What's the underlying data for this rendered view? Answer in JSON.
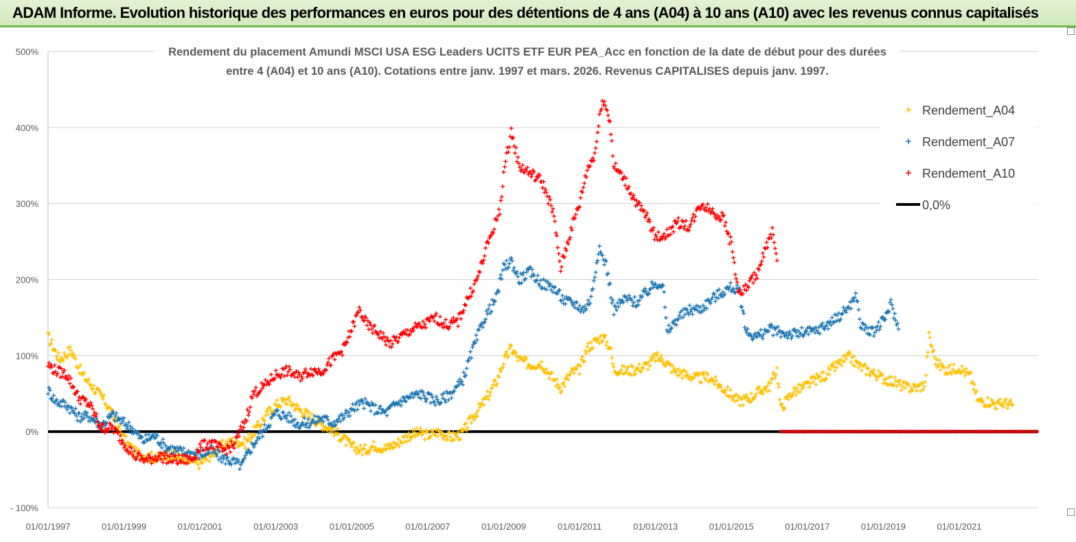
{
  "header": {
    "title": "ADAM Informe. Evolution historique des performances en euros pour des détentions de 4 ans (A04) à 10 ans (A10) avec les revenus connus capitalisés"
  },
  "chart_data": {
    "type": "scatter",
    "title_line1": "Rendement du placement Amundi MSCI USA ESG Leaders UCITS ETF EUR PEA_Acc en fonction de la date de début pour des durées",
    "title_line2": "entre 4 (A04) et 10 ans (A10). Cotations entre janv. 1997 et mars. 2026. Revenus CAPITALISES depuis janv. 1997.",
    "xlabel": "",
    "ylabel": "",
    "x_start": "01/01/1997",
    "x_end": "01/02/2023",
    "xlim_years": [
      1997,
      2023.08
    ],
    "ylim": [
      -100,
      500
    ],
    "y_ticks": [
      "- 100%",
      "0%",
      "100%",
      "200%",
      "300%",
      "400%",
      "500%"
    ],
    "y_tick_values": [
      -100,
      0,
      100,
      200,
      300,
      400,
      500
    ],
    "x_ticks": [
      "01/01/1997",
      "01/01/1999",
      "01/01/2001",
      "01/01/2003",
      "01/01/2005",
      "01/01/2007",
      "01/01/2009",
      "01/01/2011",
      "01/01/2013",
      "01/01/2015",
      "01/01/2017",
      "01/01/2019",
      "01/01/2021"
    ],
    "x_tick_values": [
      1997,
      1999,
      2001,
      2003,
      2005,
      2007,
      2009,
      2011,
      2013,
      2015,
      2017,
      2019,
      2021
    ],
    "grid": "horizontal",
    "legend_position": "top-right",
    "series": [
      {
        "name": "Rendement_A04",
        "color": "#ffc000",
        "marker": "plus",
        "points": [
          [
            1997.0,
            125
          ],
          [
            1997.3,
            95
          ],
          [
            1997.6,
            108
          ],
          [
            1997.9,
            75
          ],
          [
            1998.2,
            58
          ],
          [
            1998.5,
            40
          ],
          [
            1998.8,
            12
          ],
          [
            1999.0,
            -10
          ],
          [
            1999.3,
            -28
          ],
          [
            1999.6,
            -32
          ],
          [
            1999.9,
            -35
          ],
          [
            2000.2,
            -30
          ],
          [
            2000.5,
            -35
          ],
          [
            2000.8,
            -40
          ],
          [
            2001.0,
            -42
          ],
          [
            2001.3,
            -30
          ],
          [
            2001.6,
            -18
          ],
          [
            2001.9,
            -12
          ],
          [
            2002.2,
            -15
          ],
          [
            2002.5,
            5
          ],
          [
            2002.8,
            25
          ],
          [
            2003.0,
            35
          ],
          [
            2003.3,
            42
          ],
          [
            2003.6,
            30
          ],
          [
            2003.9,
            20
          ],
          [
            2004.2,
            10
          ],
          [
            2004.5,
            2
          ],
          [
            2004.8,
            -10
          ],
          [
            2005.0,
            -20
          ],
          [
            2005.3,
            -25
          ],
          [
            2005.6,
            -18
          ],
          [
            2005.9,
            -22
          ],
          [
            2006.2,
            -15
          ],
          [
            2006.5,
            -5
          ],
          [
            2006.8,
            -2
          ],
          [
            2007.0,
            -5
          ],
          [
            2007.3,
            0
          ],
          [
            2007.6,
            -8
          ],
          [
            2007.9,
            -3
          ],
          [
            2008.2,
            20
          ],
          [
            2008.5,
            40
          ],
          [
            2008.8,
            65
          ],
          [
            2009.0,
            92
          ],
          [
            2009.2,
            110
          ],
          [
            2009.4,
            95
          ],
          [
            2009.7,
            88
          ],
          [
            2010.0,
            90
          ],
          [
            2010.3,
            70
          ],
          [
            2010.5,
            58
          ],
          [
            2010.8,
            78
          ],
          [
            2011.0,
            82
          ],
          [
            2011.2,
            110
          ],
          [
            2011.4,
            118
          ],
          [
            2011.6,
            125
          ],
          [
            2011.8,
            112
          ],
          [
            2011.9,
            82
          ],
          [
            2012.2,
            80
          ],
          [
            2012.5,
            82
          ],
          [
            2012.8,
            88
          ],
          [
            2013.0,
            98
          ],
          [
            2013.2,
            95
          ],
          [
            2013.5,
            80
          ],
          [
            2013.8,
            75
          ],
          [
            2014.1,
            70
          ],
          [
            2014.4,
            72
          ],
          [
            2014.7,
            60
          ],
          [
            2015.0,
            48
          ],
          [
            2015.2,
            40
          ],
          [
            2015.5,
            45
          ],
          [
            2015.8,
            55
          ],
          [
            2016.0,
            60
          ],
          [
            2016.2,
            82
          ],
          [
            2016.3,
            30
          ],
          [
            2016.6,
            52
          ],
          [
            2016.9,
            58
          ],
          [
            2017.2,
            68
          ],
          [
            2017.5,
            75
          ],
          [
            2017.8,
            88
          ],
          [
            2018.1,
            98
          ],
          [
            2018.4,
            85
          ],
          [
            2018.7,
            78
          ],
          [
            2019.0,
            70
          ],
          [
            2019.3,
            65
          ],
          [
            2019.6,
            58
          ],
          [
            2019.9,
            58
          ],
          [
            2020.1,
            62
          ],
          [
            2020.2,
            125
          ],
          [
            2020.4,
            90
          ],
          [
            2020.7,
            80
          ],
          [
            2021.0,
            85
          ],
          [
            2021.3,
            72
          ],
          [
            2021.5,
            40
          ],
          [
            2021.8,
            40
          ],
          [
            2022.0,
            35
          ],
          [
            2022.2,
            38
          ],
          [
            2022.4,
            35
          ]
        ]
      },
      {
        "name": "Rendement_A07",
        "color": "#1f77b4",
        "marker": "plus",
        "points": [
          [
            1997.0,
            55
          ],
          [
            1997.2,
            40
          ],
          [
            1997.5,
            35
          ],
          [
            1997.8,
            20
          ],
          [
            1998.1,
            20
          ],
          [
            1998.4,
            8
          ],
          [
            1998.7,
            22
          ],
          [
            1998.9,
            15
          ],
          [
            1999.2,
            5
          ],
          [
            1999.5,
            -12
          ],
          [
            1999.8,
            -5
          ],
          [
            2000.1,
            -20
          ],
          [
            2000.4,
            -25
          ],
          [
            2000.7,
            -28
          ],
          [
            2001.0,
            -30
          ],
          [
            2001.3,
            -25
          ],
          [
            2001.6,
            -35
          ],
          [
            2001.9,
            -40
          ],
          [
            2002.1,
            -45
          ],
          [
            2002.3,
            -25
          ],
          [
            2002.5,
            -10
          ],
          [
            2002.8,
            10
          ],
          [
            2003.0,
            25
          ],
          [
            2003.3,
            20
          ],
          [
            2003.6,
            10
          ],
          [
            2003.9,
            12
          ],
          [
            2004.2,
            18
          ],
          [
            2004.5,
            12
          ],
          [
            2004.8,
            20
          ],
          [
            2005.0,
            30
          ],
          [
            2005.3,
            38
          ],
          [
            2005.6,
            30
          ],
          [
            2005.9,
            25
          ],
          [
            2006.2,
            38
          ],
          [
            2006.5,
            45
          ],
          [
            2006.8,
            50
          ],
          [
            2007.0,
            45
          ],
          [
            2007.3,
            40
          ],
          [
            2007.6,
            50
          ],
          [
            2007.9,
            65
          ],
          [
            2008.2,
            110
          ],
          [
            2008.5,
            150
          ],
          [
            2008.8,
            175
          ],
          [
            2009.0,
            215
          ],
          [
            2009.2,
            225
          ],
          [
            2009.4,
            200
          ],
          [
            2009.7,
            210
          ],
          [
            2010.0,
            195
          ],
          [
            2010.3,
            190
          ],
          [
            2010.6,
            172
          ],
          [
            2010.9,
            168
          ],
          [
            2011.1,
            160
          ],
          [
            2011.3,
            175
          ],
          [
            2011.5,
            240
          ],
          [
            2011.7,
            220
          ],
          [
            2011.9,
            160
          ],
          [
            2012.2,
            175
          ],
          [
            2012.5,
            170
          ],
          [
            2012.8,
            185
          ],
          [
            2013.0,
            195
          ],
          [
            2013.2,
            195
          ],
          [
            2013.3,
            130
          ],
          [
            2013.6,
            150
          ],
          [
            2013.9,
            160
          ],
          [
            2014.2,
            162
          ],
          [
            2014.5,
            175
          ],
          [
            2014.8,
            185
          ],
          [
            2015.0,
            190
          ],
          [
            2015.2,
            185
          ],
          [
            2015.4,
            130
          ],
          [
            2015.7,
            125
          ],
          [
            2016.0,
            135
          ],
          [
            2016.3,
            130
          ],
          [
            2016.6,
            128
          ],
          [
            2016.9,
            130
          ],
          [
            2017.2,
            132
          ],
          [
            2017.5,
            140
          ],
          [
            2017.8,
            150
          ],
          [
            2018.1,
            165
          ],
          [
            2018.3,
            178
          ],
          [
            2018.4,
            140
          ],
          [
            2018.7,
            130
          ],
          [
            2019.0,
            145
          ],
          [
            2019.2,
            168
          ],
          [
            2019.4,
            135
          ]
        ]
      },
      {
        "name": "Rendement_A10",
        "color": "#ff0000",
        "marker": "plus",
        "points": [
          [
            1997.0,
            88
          ],
          [
            1997.2,
            80
          ],
          [
            1997.5,
            75
          ],
          [
            1997.8,
            45
          ],
          [
            1998.1,
            35
          ],
          [
            1998.4,
            5
          ],
          [
            1998.7,
            5
          ],
          [
            1999.0,
            -15
          ],
          [
            1999.3,
            -32
          ],
          [
            1999.6,
            -38
          ],
          [
            1999.9,
            -32
          ],
          [
            2000.2,
            -36
          ],
          [
            2000.5,
            -38
          ],
          [
            2000.8,
            -36
          ],
          [
            2001.0,
            -20
          ],
          [
            2001.3,
            -15
          ],
          [
            2001.6,
            -25
          ],
          [
            2001.9,
            -18
          ],
          [
            2002.2,
            15
          ],
          [
            2002.4,
            50
          ],
          [
            2002.7,
            60
          ],
          [
            2003.0,
            75
          ],
          [
            2003.3,
            80
          ],
          [
            2003.6,
            72
          ],
          [
            2003.9,
            80
          ],
          [
            2004.2,
            80
          ],
          [
            2004.5,
            95
          ],
          [
            2004.8,
            110
          ],
          [
            2005.0,
            135
          ],
          [
            2005.2,
            160
          ],
          [
            2005.4,
            140
          ],
          [
            2005.7,
            130
          ],
          [
            2006.0,
            115
          ],
          [
            2006.3,
            125
          ],
          [
            2006.6,
            135
          ],
          [
            2006.9,
            140
          ],
          [
            2007.2,
            150
          ],
          [
            2007.5,
            140
          ],
          [
            2007.8,
            145
          ],
          [
            2008.0,
            170
          ],
          [
            2008.3,
            200
          ],
          [
            2008.6,
            250
          ],
          [
            2008.9,
            290
          ],
          [
            2009.0,
            340
          ],
          [
            2009.2,
            395
          ],
          [
            2009.4,
            350
          ],
          [
            2009.7,
            340
          ],
          [
            2010.0,
            330
          ],
          [
            2010.3,
            290
          ],
          [
            2010.5,
            215
          ],
          [
            2010.8,
            270
          ],
          [
            2011.0,
            300
          ],
          [
            2011.2,
            345
          ],
          [
            2011.4,
            365
          ],
          [
            2011.6,
            440
          ],
          [
            2011.8,
            410
          ],
          [
            2011.9,
            350
          ],
          [
            2012.2,
            330
          ],
          [
            2012.5,
            300
          ],
          [
            2012.8,
            280
          ],
          [
            2013.0,
            255
          ],
          [
            2013.3,
            260
          ],
          [
            2013.6,
            275
          ],
          [
            2013.9,
            270
          ],
          [
            2014.2,
            300
          ],
          [
            2014.5,
            290
          ],
          [
            2014.8,
            280
          ],
          [
            2015.0,
            245
          ],
          [
            2015.2,
            180
          ],
          [
            2015.4,
            190
          ],
          [
            2015.7,
            210
          ],
          [
            2015.9,
            240
          ],
          [
            2016.1,
            265
          ],
          [
            2016.2,
            225
          ]
        ]
      },
      {
        "name": "0,0%",
        "color": "#000000",
        "marker": "line",
        "points": [
          [
            1997.0,
            0
          ],
          [
            2023.08,
            0
          ]
        ]
      }
    ],
    "a10_zero_start": 2016.3,
    "a10_zero_end": 2023.08
  }
}
